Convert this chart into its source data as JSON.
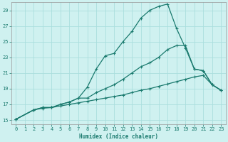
{
  "xlabel": "Humidex (Indice chaleur)",
  "bg_color": "#cff1f0",
  "grid_color": "#aadede",
  "line_color": "#1a7a6e",
  "xlim": [
    -0.5,
    23.5
  ],
  "ylim": [
    14.5,
    30.0
  ],
  "xticks": [
    0,
    1,
    2,
    3,
    4,
    5,
    6,
    7,
    8,
    9,
    10,
    11,
    12,
    13,
    14,
    15,
    16,
    17,
    18,
    19,
    20,
    21,
    22,
    23
  ],
  "yticks": [
    15,
    17,
    19,
    21,
    23,
    25,
    27,
    29
  ],
  "line1_x": [
    0,
    2,
    3,
    4,
    5,
    6,
    7,
    8,
    9,
    10,
    11,
    12,
    13,
    14,
    15,
    16,
    17,
    18,
    19,
    20,
    21,
    22,
    23
  ],
  "line1_y": [
    15.1,
    16.3,
    16.6,
    16.6,
    17.0,
    17.3,
    17.8,
    19.2,
    21.5,
    23.2,
    23.5,
    25.0,
    26.3,
    28.0,
    29.0,
    29.5,
    29.8,
    26.7,
    24.2,
    21.5,
    21.3,
    19.5,
    18.8
  ],
  "line2_x": [
    0,
    2,
    3,
    4,
    5,
    6,
    7,
    8,
    9,
    10,
    11,
    12,
    13,
    14,
    15,
    16,
    17,
    18,
    19,
    20,
    21,
    22,
    23
  ],
  "line2_y": [
    15.1,
    16.3,
    16.6,
    16.6,
    17.0,
    17.3,
    17.8,
    17.8,
    18.5,
    19.0,
    19.5,
    20.2,
    21.0,
    21.8,
    22.3,
    23.0,
    24.0,
    24.5,
    24.5,
    21.5,
    21.3,
    19.5,
    18.8
  ],
  "line3_x": [
    0,
    2,
    3,
    4,
    5,
    6,
    7,
    8,
    9,
    10,
    11,
    12,
    13,
    14,
    15,
    16,
    17,
    18,
    19,
    20,
    21,
    22,
    23
  ],
  "line3_y": [
    15.1,
    16.3,
    16.5,
    16.6,
    16.8,
    17.0,
    17.2,
    17.4,
    17.6,
    17.8,
    18.0,
    18.2,
    18.5,
    18.8,
    19.0,
    19.3,
    19.6,
    19.9,
    20.2,
    20.5,
    20.7,
    19.5,
    18.8
  ],
  "xlabel_fontsize": 5.5,
  "tick_fontsize": 5.0,
  "line_width": 0.9,
  "marker_size": 3.5
}
